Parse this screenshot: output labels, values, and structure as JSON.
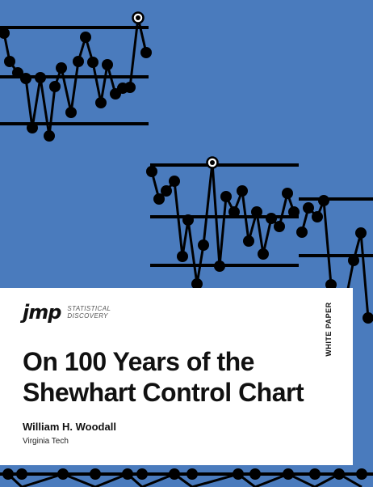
{
  "brand": {
    "logo_text": "jmp",
    "tagline_line1": "STATISTICAL",
    "tagline_line2": "DISCOVERY"
  },
  "document_type": "WHITE PAPER",
  "title_line1": "On 100 Years of the",
  "title_line2": "Shewhart Control Chart",
  "author": "William H. Woodall",
  "affiliation": "Virginia Tech",
  "colors": {
    "background": "#4a7bbd",
    "chart_ink": "#000000",
    "panel": "#ffffff"
  }
}
